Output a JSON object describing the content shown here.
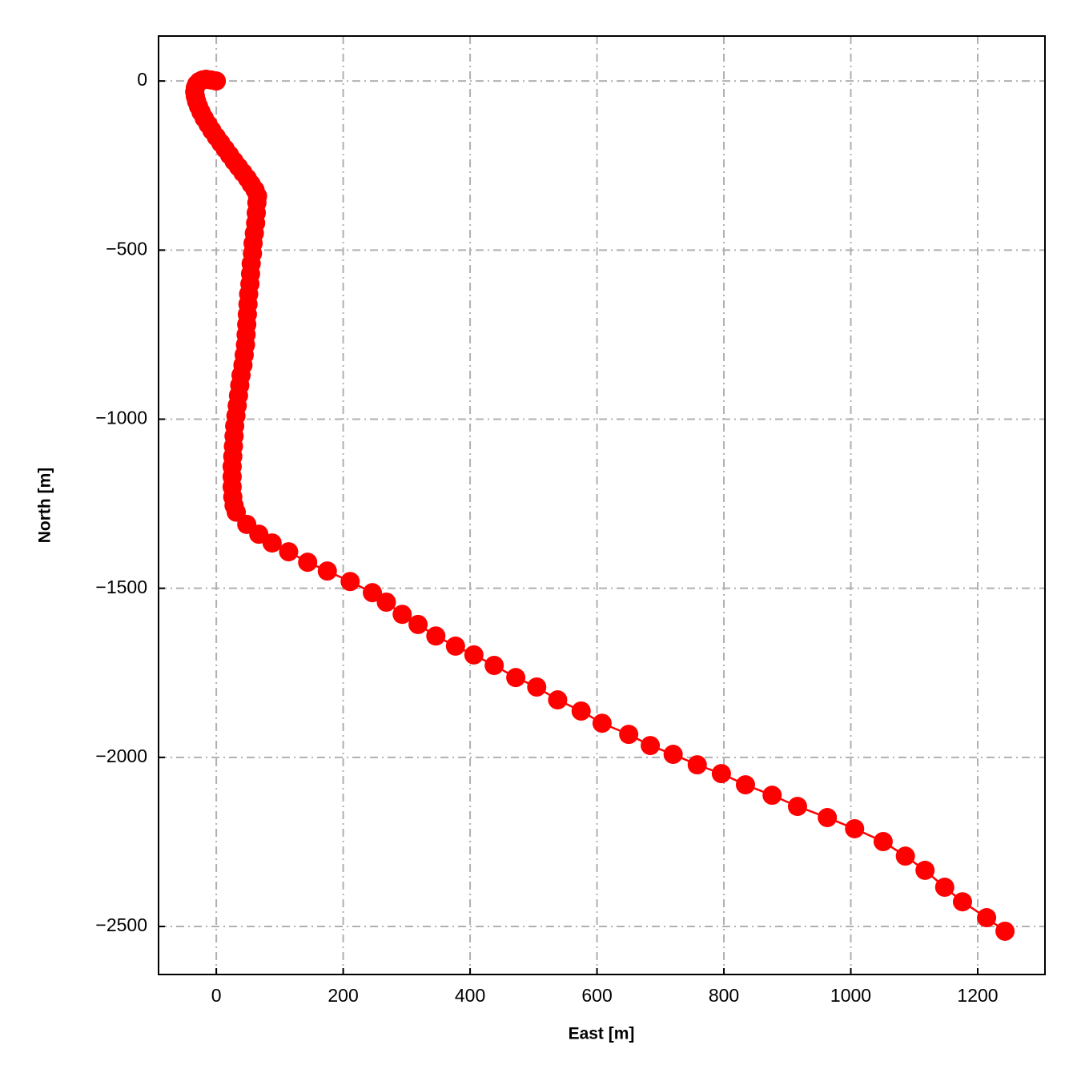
{
  "chart_data": {
    "type": "line",
    "xlabel": "East [m]",
    "ylabel": "North [m]",
    "x": [
      0,
      -8,
      -16,
      -22,
      -27,
      -31,
      -33,
      -34,
      -33,
      -31,
      -28,
      -24,
      -19,
      -13,
      -7,
      0,
      7,
      14,
      21,
      28,
      35,
      42,
      49,
      55,
      61,
      65,
      64,
      63,
      62,
      60,
      58,
      57,
      55,
      54,
      53,
      51,
      50,
      49,
      48,
      47,
      46,
      44,
      42,
      39,
      37,
      35,
      33,
      31,
      29,
      28,
      27,
      26,
      25,
      25,
      25,
      26,
      28,
      31.5,
      48,
      67,
      88,
      114,
      144,
      175,
      211,
      246,
      268,
      293,
      318,
      346,
      377,
      406,
      438,
      472,
      505,
      538,
      575,
      608,
      650,
      684,
      720,
      758,
      796,
      834,
      876,
      916,
      963,
      1006,
      1051,
      1086,
      1117,
      1148,
      1176,
      1214,
      1243
    ],
    "series": [
      {
        "color": "#ff0000",
        "values": [
          0,
          3,
          5,
          3,
          -2,
          -10,
          -20,
          -32,
          -45,
          -60,
          -75,
          -92,
          -110,
          -128,
          -146,
          -165,
          -183,
          -201,
          -219,
          -237,
          -254,
          -271,
          -288,
          -305,
          -322,
          -340,
          -360,
          -390,
          -420,
          -450,
          -480,
          -510,
          -540,
          -570,
          -600,
          -630,
          -660,
          -690,
          -720,
          -750,
          -780,
          -810,
          -840,
          -870,
          -900,
          -930,
          -960,
          -990,
          -1020,
          -1050,
          -1080,
          -1110,
          -1140,
          -1170,
          -1200,
          -1230,
          -1255,
          -1275,
          -1311,
          -1340,
          -1366,
          -1392,
          -1423,
          -1449,
          -1480,
          -1513,
          -1541,
          -1577,
          -1607,
          -1641,
          -1671,
          -1697,
          -1728,
          -1764,
          -1792,
          -1830,
          -1863,
          -1899,
          -1932,
          -1965,
          -1991,
          -2022,
          -2048,
          -2081,
          -2112,
          -2145,
          -2178,
          -2211,
          -2249,
          -2292,
          -2334,
          -2384,
          -2427,
          -2474,
          -2514
        ]
      }
    ],
    "xlim": [
      -91,
      1306
    ],
    "ylim": [
      -2642,
      133
    ],
    "xticks": [
      0,
      200,
      400,
      600,
      800,
      1000,
      1200
    ],
    "yticks": [
      {
        "value": -2500,
        "label": "−2500"
      },
      {
        "value": -2000,
        "label": "−2000"
      },
      {
        "value": -1500,
        "label": "−1500"
      },
      {
        "value": -1000,
        "label": "−1000"
      },
      {
        "value": -500,
        "label": "−500"
      },
      0
    ],
    "grid": true
  }
}
